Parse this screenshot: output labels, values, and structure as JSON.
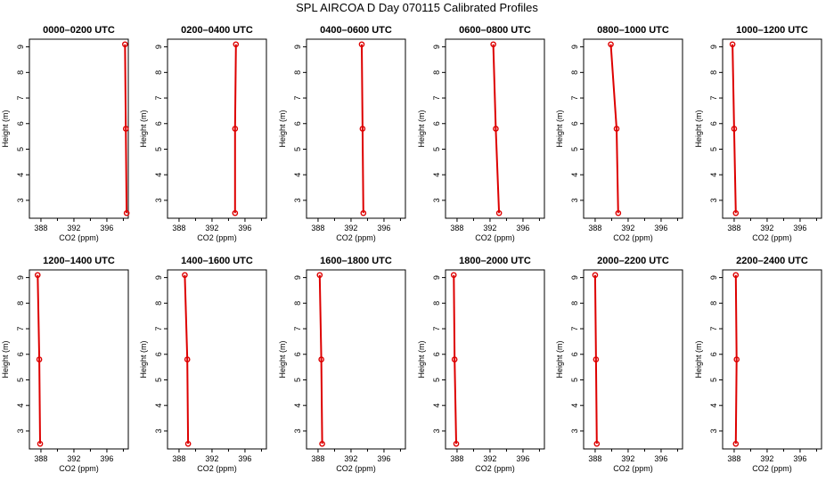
{
  "page": {
    "title": "SPL AIRCOA D  Day 070115  Calibrated Profiles"
  },
  "style": {
    "series_color": "#dd0000",
    "frame_color": "#000000"
  },
  "chart_data": [
    {
      "type": "line",
      "title": "0000–0200 UTC",
      "xlabel": "CO2 (ppm)",
      "ylabel": "Height (m)",
      "xlim": [
        386.6,
        398.6
      ],
      "ylim": [
        2.3,
        9.3
      ],
      "xticks": [
        388,
        392,
        396
      ],
      "yticks": [
        3,
        4,
        5,
        6,
        7,
        8,
        9
      ],
      "series": [
        {
          "x": [
            398.2,
            398.3,
            398.4
          ],
          "y": [
            9.1,
            5.8,
            2.5
          ]
        }
      ]
    },
    {
      "type": "line",
      "title": "0200–0400 UTC",
      "xlabel": "CO2 (ppm)",
      "ylabel": "Height (m)",
      "xlim": [
        386.6,
        398.6
      ],
      "ylim": [
        2.3,
        9.3
      ],
      "xticks": [
        388,
        392,
        396
      ],
      "yticks": [
        3,
        4,
        5,
        6,
        7,
        8,
        9
      ],
      "series": [
        {
          "x": [
            394.9,
            394.8,
            394.8
          ],
          "y": [
            9.1,
            5.8,
            2.5
          ]
        }
      ]
    },
    {
      "type": "line",
      "title": "0400–0600 UTC",
      "xlabel": "CO2 (ppm)",
      "ylabel": "Height (m)",
      "xlim": [
        386.6,
        398.6
      ],
      "ylim": [
        2.3,
        9.3
      ],
      "xticks": [
        388,
        392,
        396
      ],
      "yticks": [
        3,
        4,
        5,
        6,
        7,
        8,
        9
      ],
      "series": [
        {
          "x": [
            393.3,
            393.4,
            393.5
          ],
          "y": [
            9.1,
            5.8,
            2.5
          ]
        }
      ]
    },
    {
      "type": "line",
      "title": "0600–0800 UTC",
      "xlabel": "CO2 (ppm)",
      "ylabel": "Height (m)",
      "xlim": [
        386.6,
        398.6
      ],
      "ylim": [
        2.3,
        9.3
      ],
      "xticks": [
        388,
        392,
        396
      ],
      "yticks": [
        3,
        4,
        5,
        6,
        7,
        8,
        9
      ],
      "series": [
        {
          "x": [
            392.4,
            392.7,
            393.1
          ],
          "y": [
            9.1,
            5.8,
            2.5
          ]
        }
      ]
    },
    {
      "type": "line",
      "title": "0800–1000 UTC",
      "xlabel": "CO2 (ppm)",
      "ylabel": "Height (m)",
      "xlim": [
        386.6,
        398.6
      ],
      "ylim": [
        2.3,
        9.3
      ],
      "xticks": [
        388,
        392,
        396
      ],
      "yticks": [
        3,
        4,
        5,
        6,
        7,
        8,
        9
      ],
      "series": [
        {
          "x": [
            389.9,
            390.6,
            390.8
          ],
          "y": [
            9.1,
            5.8,
            2.5
          ]
        }
      ]
    },
    {
      "type": "line",
      "title": "1000–1200 UTC",
      "xlabel": "CO2 (ppm)",
      "ylabel": "Height (m)",
      "xlim": [
        386.6,
        398.6
      ],
      "ylim": [
        2.3,
        9.3
      ],
      "xticks": [
        388,
        392,
        396
      ],
      "yticks": [
        3,
        4,
        5,
        6,
        7,
        8,
        9
      ],
      "series": [
        {
          "x": [
            387.8,
            388.0,
            388.2
          ],
          "y": [
            9.1,
            5.8,
            2.5
          ]
        }
      ]
    },
    {
      "type": "line",
      "title": "1200–1400 UTC",
      "xlabel": "CO2 (ppm)",
      "ylabel": "Height (m)",
      "xlim": [
        386.6,
        398.6
      ],
      "ylim": [
        2.3,
        9.3
      ],
      "xticks": [
        388,
        392,
        396
      ],
      "yticks": [
        3,
        4,
        5,
        6,
        7,
        8,
        9
      ],
      "series": [
        {
          "x": [
            387.6,
            387.8,
            387.9
          ],
          "y": [
            9.1,
            5.8,
            2.5
          ]
        }
      ]
    },
    {
      "type": "line",
      "title": "1400–1600 UTC",
      "xlabel": "CO2 (ppm)",
      "ylabel": "Height (m)",
      "xlim": [
        386.6,
        398.6
      ],
      "ylim": [
        2.3,
        9.3
      ],
      "xticks": [
        388,
        392,
        396
      ],
      "yticks": [
        3,
        4,
        5,
        6,
        7,
        8,
        9
      ],
      "series": [
        {
          "x": [
            388.7,
            389.0,
            389.1
          ],
          "y": [
            9.1,
            5.8,
            2.5
          ]
        }
      ]
    },
    {
      "type": "line",
      "title": "1600–1800 UTC",
      "xlabel": "CO2 (ppm)",
      "ylabel": "Height (m)",
      "xlim": [
        386.6,
        398.6
      ],
      "ylim": [
        2.3,
        9.3
      ],
      "xticks": [
        388,
        392,
        396
      ],
      "yticks": [
        3,
        4,
        5,
        6,
        7,
        8,
        9
      ],
      "series": [
        {
          "x": [
            388.2,
            388.4,
            388.5
          ],
          "y": [
            9.1,
            5.8,
            2.5
          ]
        }
      ]
    },
    {
      "type": "line",
      "title": "1800–2000 UTC",
      "xlabel": "CO2 (ppm)",
      "ylabel": "Height (m)",
      "xlim": [
        386.6,
        398.6
      ],
      "ylim": [
        2.3,
        9.3
      ],
      "xticks": [
        388,
        392,
        396
      ],
      "yticks": [
        3,
        4,
        5,
        6,
        7,
        8,
        9
      ],
      "series": [
        {
          "x": [
            387.6,
            387.7,
            387.9
          ],
          "y": [
            9.1,
            5.8,
            2.5
          ]
        }
      ]
    },
    {
      "type": "line",
      "title": "2000–2200 UTC",
      "xlabel": "CO2 (ppm)",
      "ylabel": "Height (m)",
      "xlim": [
        386.6,
        398.6
      ],
      "ylim": [
        2.3,
        9.3
      ],
      "xticks": [
        388,
        392,
        396
      ],
      "yticks": [
        3,
        4,
        5,
        6,
        7,
        8,
        9
      ],
      "series": [
        {
          "x": [
            388.0,
            388.1,
            388.2
          ],
          "y": [
            9.1,
            5.8,
            2.5
          ]
        }
      ]
    },
    {
      "type": "line",
      "title": "2200–2400 UTC",
      "xlabel": "CO2 (ppm)",
      "ylabel": "Height (m)",
      "xlim": [
        386.6,
        398.6
      ],
      "ylim": [
        2.3,
        9.3
      ],
      "xticks": [
        388,
        392,
        396
      ],
      "yticks": [
        3,
        4,
        5,
        6,
        7,
        8,
        9
      ],
      "series": [
        {
          "x": [
            388.2,
            388.3,
            388.2
          ],
          "y": [
            9.1,
            5.8,
            2.5
          ]
        }
      ]
    }
  ]
}
